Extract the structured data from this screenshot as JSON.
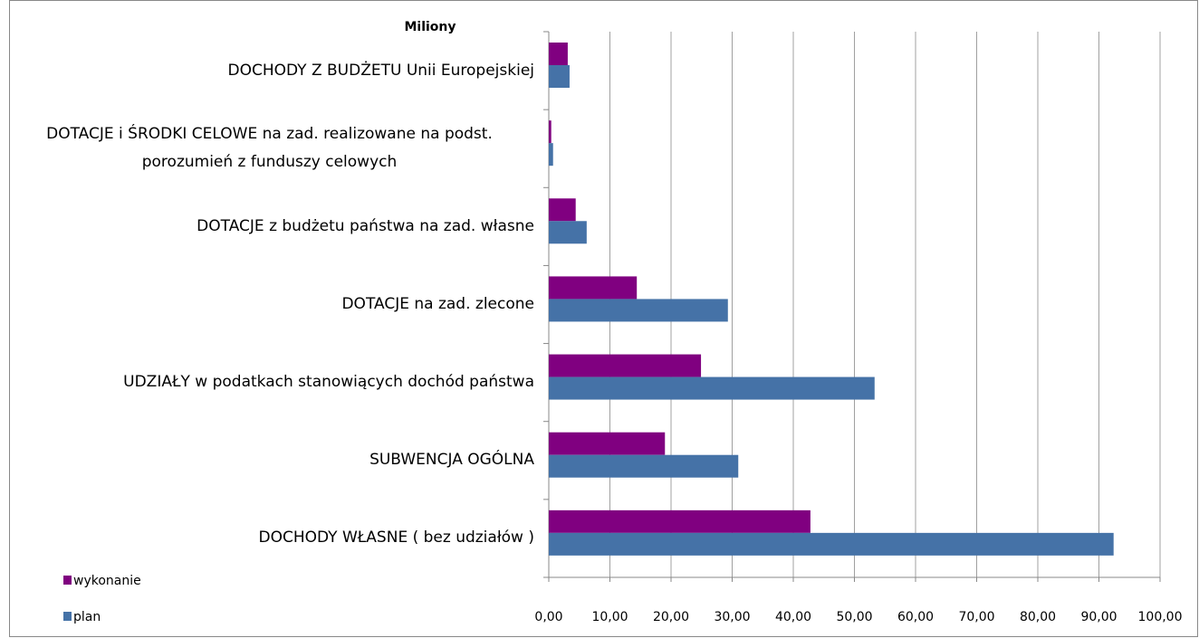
{
  "chart_data": {
    "type": "hbar",
    "axis_title": "Miliony",
    "categories": [
      "DOCHODY Z BUDŻETU Unii Europejskiej",
      "DOTACJE i ŚRODKI CELOWE na zad. realizowane na podst. porozumień z funduszy celowych",
      "DOTACJE z budżetu państwa na zad. własne",
      "DOTACJE na zad. zlecone",
      "UDZIAŁY w podatkach stanowiących dochód państwa",
      "SUBWENCJA  OGÓLNA",
      "DOCHODY   WŁASNE ( bez udziałów )"
    ],
    "series": [
      {
        "name": "wykonanie",
        "color": "#800080",
        "values": [
          3.1,
          0.4,
          4.4,
          14.4,
          24.9,
          19.0,
          42.8
        ]
      },
      {
        "name": "plan",
        "color": "#4572a7",
        "values": [
          3.4,
          0.7,
          6.2,
          29.3,
          53.3,
          31.0,
          92.4
        ]
      }
    ],
    "xlim": [
      0,
      100
    ],
    "xticks": [
      {
        "value": 0,
        "label": "0,00"
      },
      {
        "value": 10,
        "label": "10,00"
      },
      {
        "value": 20,
        "label": "20,00"
      },
      {
        "value": 30,
        "label": "30,00"
      },
      {
        "value": 40,
        "label": "40,00"
      },
      {
        "value": 50,
        "label": "50,00"
      },
      {
        "value": 60,
        "label": "60,00"
      },
      {
        "value": 70,
        "label": "70,00"
      },
      {
        "value": 80,
        "label": "80,00"
      },
      {
        "value": 90,
        "label": "90,00"
      },
      {
        "value": 100,
        "label": "100,00"
      }
    ],
    "grid": true,
    "legend": "bottom-left"
  }
}
